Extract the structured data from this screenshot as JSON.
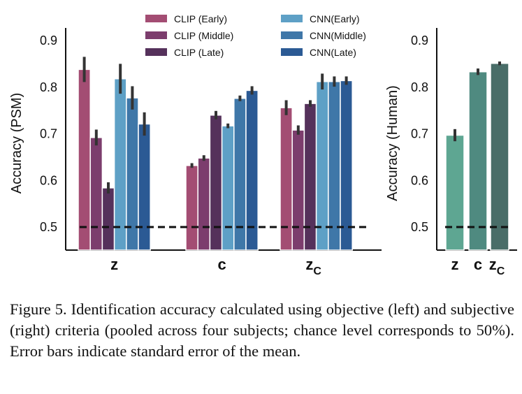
{
  "chart_data": [
    {
      "type": "bar",
      "title": "",
      "xlabel": "",
      "ylabel": "Accuracy (PSM)",
      "ylim": [
        0.45,
        0.92
      ],
      "yticks": [
        "0.5",
        "0.6",
        "0.7",
        "0.8",
        "0.9"
      ],
      "categories": [
        "z",
        "c",
        "zc"
      ],
      "chance_level": 0.5,
      "legend_position": "top",
      "series": [
        {
          "name": "CLIP (Early)",
          "color": "#a34d73",
          "values": [
            0.838,
            0.632,
            0.756
          ],
          "errors": [
            0.027,
            0.005,
            0.016
          ]
        },
        {
          "name": "CLIP (Middle)",
          "color": "#7c3d6d",
          "values": [
            0.692,
            0.648,
            0.708
          ],
          "errors": [
            0.017,
            0.006,
            0.01
          ]
        },
        {
          "name": "CLIP (Late)",
          "color": "#55315b",
          "values": [
            0.584,
            0.74,
            0.765
          ],
          "errors": [
            0.012,
            0.009,
            0.007
          ]
        },
        {
          "name": "CNN(Early)",
          "color": "#5ea0c6",
          "values": [
            0.818,
            0.717,
            0.812
          ],
          "errors": [
            0.032,
            0.005,
            0.017
          ]
        },
        {
          "name": "CNN(Middle)",
          "color": "#3f77a8",
          "values": [
            0.777,
            0.776,
            0.812
          ],
          "errors": [
            0.025,
            0.006,
            0.011
          ]
        },
        {
          "name": "CNN(Late)",
          "color": "#2b5a94",
          "values": [
            0.721,
            0.793,
            0.814
          ],
          "errors": [
            0.025,
            0.009,
            0.009
          ]
        }
      ]
    },
    {
      "type": "bar",
      "title": "",
      "xlabel": "",
      "ylabel": "Accuracy (Human)",
      "ylim": [
        0.45,
        0.92
      ],
      "yticks": [
        "0.5",
        "0.6",
        "0.7",
        "0.8",
        "0.9"
      ],
      "categories": [
        "z",
        "c",
        "zc"
      ],
      "chance_level": 0.5,
      "series": [
        {
          "name": "",
          "colors": [
            "#5ea692",
            "#4f8a80",
            "#496d68"
          ],
          "values": [
            0.697,
            0.833,
            0.851
          ],
          "errors": [
            0.013,
            0.007,
            0.004
          ]
        }
      ]
    }
  ],
  "caption": "Figure 5.  Identification accuracy calculated using objective (left) and subjective (right) criteria (pooled across four subjects; chance level corresponds to 50%).  Error bars indicate standard error of the mean."
}
